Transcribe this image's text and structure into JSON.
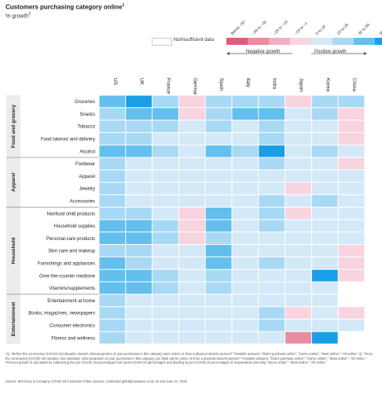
{
  "title": "Customers purchasing category online",
  "title_sup": "1",
  "subtitle": "% growth",
  "subtitle_sup": "2",
  "legend": {
    "bins": [
      {
        "label": "Below –50",
        "color": "#d9607c"
      },
      {
        "label": "–49 to –30",
        "color": "#e88da2"
      },
      {
        "label": "–29 to –15",
        "color": "#f1b1c2"
      },
      {
        "label": "–14 to –1",
        "color": "#f8d4df"
      },
      {
        "label": "0 to 14",
        "color": "#d4e9f8"
      },
      {
        "label": "15 to 29",
        "color": "#a8d9f4"
      },
      {
        "label": "30 to 49",
        "color": "#62bfee"
      },
      {
        "label": "50+",
        "color": "#1a9ee6"
      }
    ],
    "nodata_label": "No/insufficient data",
    "nodata_color": "#ffffff",
    "negative_label": "Negative growth",
    "positive_label": "Positive growth"
  },
  "chart_data": {
    "type": "heatmap",
    "title": "Customers purchasing category online",
    "subtitle": "% growth",
    "columns": [
      "US",
      "UK",
      "France",
      "Germany",
      "Spain",
      "Italy",
      "India",
      "Japan",
      "Korea",
      "China"
    ],
    "groups": [
      {
        "name": "Food and grocery",
        "rows": [
          "Groceries",
          "Snacks",
          "Tobacco",
          "Food takeout and delivery",
          "Alcohol"
        ]
      },
      {
        "name": "Apparel",
        "rows": [
          "Footwear",
          "Apparel",
          "Jewelry",
          "Accessories"
        ]
      },
      {
        "name": "Household",
        "rows": [
          "Nonfood child products",
          "Household supplies",
          "Personal-care products",
          "Skin care and makeup",
          "Furnishings and appliances",
          "Over-the-counter medicine",
          "Vitamins/supplements"
        ]
      },
      {
        "name": "Entertainment",
        "rows": [
          "Entertainment at home",
          "Books, magazines, newspapers",
          "Consumer electronics",
          "Fitness and wellness"
        ]
      }
    ],
    "bin_scale": "0 = Below –50, 1 = –49 to –30, 2 = –29 to –15, 3 = –14 to –1, 4 = 0 to 14, 5 = 15 to 29, 6 = 30 to 49, 7 = 50+, null = No/insufficient data",
    "values": [
      [
        6,
        7,
        5,
        3,
        5,
        5,
        5,
        3,
        5,
        5
      ],
      [
        5,
        6,
        6,
        3,
        5,
        6,
        6,
        4,
        5,
        3
      ],
      [
        5,
        5,
        5,
        4,
        5,
        4,
        5,
        4,
        4,
        3
      ],
      [
        5,
        5,
        4,
        4,
        4,
        4,
        5,
        4,
        4,
        3
      ],
      [
        6,
        6,
        5,
        4,
        6,
        5,
        7,
        4,
        5,
        4
      ],
      [
        5,
        4,
        4,
        4,
        4,
        4,
        5,
        4,
        4,
        3
      ],
      [
        5,
        4,
        4,
        4,
        4,
        4,
        4,
        4,
        4,
        4
      ],
      [
        5,
        4,
        4,
        4,
        4,
        4,
        4,
        3,
        4,
        4
      ],
      [
        5,
        4,
        4,
        4,
        4,
        4,
        5,
        4,
        5,
        4
      ],
      [
        5,
        5,
        4,
        3,
        6,
        4,
        5,
        3,
        4,
        4
      ],
      [
        6,
        6,
        5,
        3,
        6,
        4,
        5,
        4,
        4,
        4
      ],
      [
        6,
        6,
        5,
        3,
        5,
        4,
        4,
        4,
        4,
        4
      ],
      [
        5,
        5,
        4,
        4,
        6,
        4,
        4,
        4,
        4,
        3
      ],
      [
        6,
        5,
        4,
        4,
        6,
        4,
        5,
        4,
        4,
        3
      ],
      [
        6,
        6,
        5,
        4,
        5,
        4,
        4,
        4,
        7,
        3
      ],
      [
        6,
        6,
        5,
        4,
        5,
        4,
        4,
        4,
        4,
        null
      ],
      [
        5,
        4,
        4,
        4,
        4,
        4,
        4,
        4,
        4,
        null
      ],
      [
        5,
        4,
        4,
        4,
        4,
        4,
        5,
        3,
        4,
        3
      ],
      [
        5,
        4,
        4,
        4,
        4,
        4,
        5,
        4,
        4,
        4
      ],
      [
        5,
        4,
        4,
        4,
        4,
        4,
        4,
        1,
        7,
        null
      ]
    ]
  },
  "footnote": "¹Q: \"Before the coronavirus (COVID-19) situation started, what proportion of your purchases in this category were online vs from a physical store/in-person?\" Possible answers: \"Didn't purchase online\"; \"Some online\"; \"Most online\"; \"All online.\" Q: \"Once the coronavirus (COVID-19) situation has subsided, what proportion of your purchases in this category you think will be online vs from a physical store/in-person?\" Possible answers: \"Didn't purchase online\"; \"Some online\"; \"Most online\"; \"All online.\" ²Percent growth is calculated by subtracting the pre-COVID-19 percentages from post-COVID-19 percentages and dividing by pre-COVID-19 percentages of respondents selecting \"Some online\"; \"Most online\"; \"All online.\"",
  "source": "Source: McKinsey & Company COVID-19 Consumer Pulse surveys, conducted globally between June 15 and June 21, 2020"
}
